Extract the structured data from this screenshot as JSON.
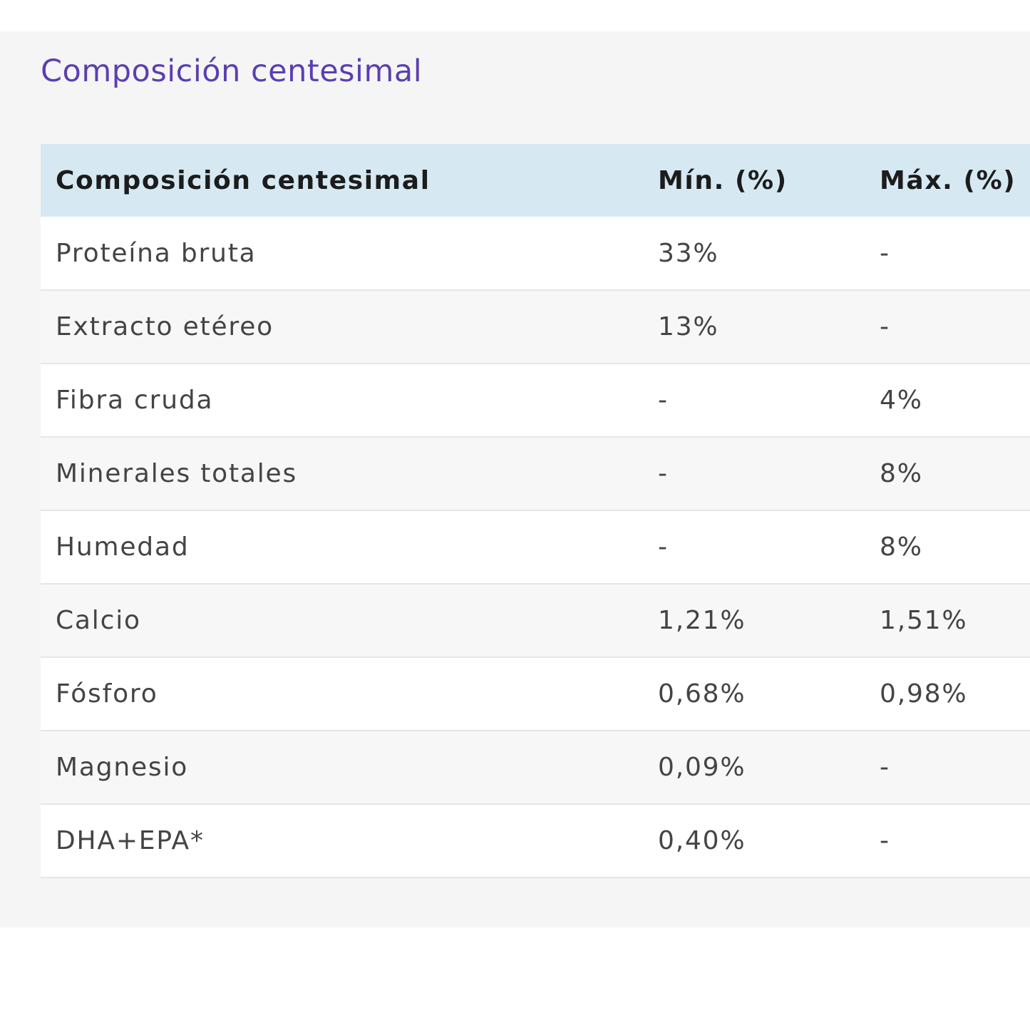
{
  "section": {
    "title": "Composición centesimal"
  },
  "table": {
    "headers": [
      "Composición centesimal",
      "Mín. (%)",
      "Máx. (%)"
    ],
    "rows": [
      {
        "name": "Proteína bruta",
        "min": "33%",
        "max": "-"
      },
      {
        "name": "Extracto etéreo",
        "min": "13%",
        "max": "-"
      },
      {
        "name": "Fibra cruda",
        "min": "-",
        "max": "4%"
      },
      {
        "name": "Minerales totales",
        "min": "-",
        "max": "8%"
      },
      {
        "name": "Humedad",
        "min": "-",
        "max": "8%"
      },
      {
        "name": "Calcio",
        "min": "1,21%",
        "max": "1,51%"
      },
      {
        "name": "Fósforo",
        "min": "0,68%",
        "max": "0,98%"
      },
      {
        "name": "Magnesio",
        "min": "0,09%",
        "max": "-"
      },
      {
        "name": "DHA+EPA*",
        "min": "0,40%",
        "max": "-"
      }
    ]
  },
  "colors": {
    "title": "#5b3fb0",
    "header_bg": "#d6e9f3",
    "panel_bg": "#f5f5f5"
  }
}
